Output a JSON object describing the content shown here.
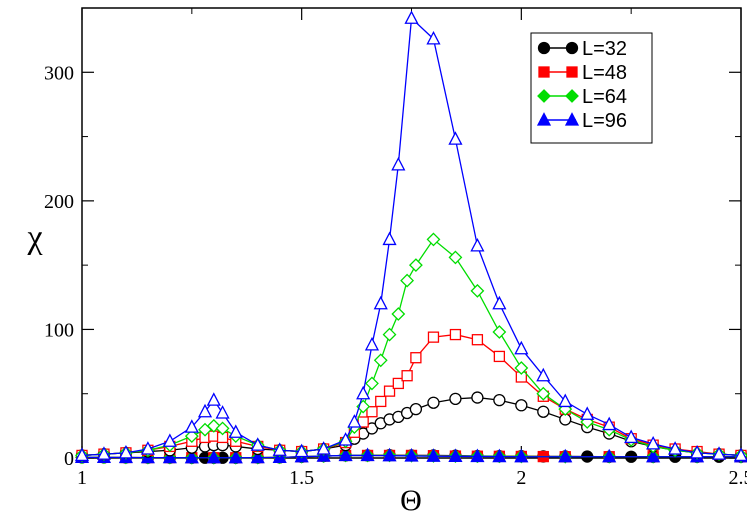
{
  "chart_data": {
    "type": "line",
    "xlabel": "Θ",
    "ylabel": "χ",
    "xlim": [
      1.0,
      2.5
    ],
    "ylim": [
      0,
      350
    ],
    "x_ticks": [
      "1",
      "1.5",
      "2",
      "2.5"
    ],
    "y_ticks": [
      "0",
      "100",
      "200",
      "300"
    ],
    "grid": false,
    "legend_position": "top-right",
    "series": [
      {
        "name": "L=32",
        "color": "#000000",
        "marker": "circle",
        "points": [
          [
            1.0,
            0.5
          ],
          [
            1.05,
            0.5
          ],
          [
            1.1,
            0.4
          ],
          [
            1.15,
            0.3
          ],
          [
            1.2,
            0.3
          ],
          [
            1.25,
            0.2
          ],
          [
            1.28,
            0.2
          ],
          [
            1.3,
            0.2
          ],
          [
            1.32,
            0.2
          ],
          [
            1.35,
            0.2
          ],
          [
            1.4,
            0.3
          ],
          [
            1.45,
            0.5
          ],
          [
            1.5,
            1.0
          ],
          [
            1.55,
            1.5
          ],
          [
            1.6,
            2.0
          ],
          [
            1.65,
            2.0
          ],
          [
            1.7,
            2.2
          ],
          [
            1.75,
            2.0
          ],
          [
            1.8,
            2.0
          ],
          [
            1.85,
            1.8
          ],
          [
            1.9,
            1.5
          ],
          [
            1.95,
            1.4
          ],
          [
            2.0,
            1.4
          ],
          [
            2.05,
            1.2
          ],
          [
            2.1,
            1.2
          ],
          [
            2.15,
            1.1
          ],
          [
            2.2,
            1.0
          ],
          [
            2.25,
            1.0
          ],
          [
            2.3,
            1.0
          ],
          [
            2.35,
            1.0
          ],
          [
            2.4,
            1.0
          ],
          [
            2.45,
            1.0
          ],
          [
            2.5,
            1.0
          ]
        ]
      },
      {
        "name": "L=48",
        "color": "#ff0000",
        "marker": "square",
        "points": [
          [
            1.0,
            0.5
          ],
          [
            1.05,
            0.5
          ],
          [
            1.1,
            0.4
          ],
          [
            1.15,
            0.3
          ],
          [
            1.2,
            0.3
          ],
          [
            1.25,
            0.2
          ],
          [
            1.3,
            0.2
          ],
          [
            1.35,
            0.2
          ],
          [
            1.4,
            0.3
          ],
          [
            1.45,
            0.5
          ],
          [
            1.5,
            1.0
          ],
          [
            1.55,
            1.5
          ],
          [
            1.6,
            2.0
          ],
          [
            1.65,
            2.0
          ],
          [
            1.7,
            2.0
          ],
          [
            1.75,
            2.0
          ],
          [
            1.8,
            1.8
          ],
          [
            1.85,
            1.5
          ],
          [
            1.9,
            1.4
          ],
          [
            1.95,
            1.3
          ],
          [
            2.0,
            1.2
          ],
          [
            2.05,
            1.1
          ],
          [
            2.1,
            1.0
          ],
          [
            2.2,
            1.0
          ],
          [
            2.3,
            1.0
          ],
          [
            2.4,
            1.0
          ],
          [
            2.5,
            1.0
          ]
        ]
      },
      {
        "name": "L=64",
        "color": "#00dd00",
        "marker": "diamond",
        "points": [
          [
            1.0,
            0.5
          ],
          [
            1.05,
            0.5
          ],
          [
            1.1,
            0.4
          ],
          [
            1.15,
            0.3
          ],
          [
            1.2,
            0.3
          ],
          [
            1.25,
            0.2
          ],
          [
            1.3,
            0.2
          ],
          [
            1.35,
            0.2
          ],
          [
            1.4,
            0.3
          ],
          [
            1.45,
            0.5
          ],
          [
            1.5,
            1.0
          ],
          [
            1.55,
            1.5
          ],
          [
            1.6,
            2.0
          ],
          [
            1.65,
            2.0
          ],
          [
            1.7,
            2.0
          ],
          [
            1.75,
            1.8
          ],
          [
            1.8,
            1.6
          ],
          [
            1.85,
            1.5
          ],
          [
            1.9,
            1.4
          ],
          [
            1.95,
            1.3
          ],
          [
            2.0,
            1.2
          ],
          [
            2.1,
            1.0
          ],
          [
            2.2,
            1.0
          ],
          [
            2.3,
            1.0
          ],
          [
            2.4,
            1.0
          ],
          [
            2.5,
            1.0
          ]
        ]
      },
      {
        "name": "L=96",
        "color": "#0000ff",
        "marker": "triangle",
        "points": [
          [
            1.0,
            0.5
          ],
          [
            1.05,
            0.5
          ],
          [
            1.1,
            0.4
          ],
          [
            1.15,
            0.3
          ],
          [
            1.2,
            0.3
          ],
          [
            1.25,
            0.2
          ],
          [
            1.3,
            0.2
          ],
          [
            1.35,
            0.2
          ],
          [
            1.4,
            0.3
          ],
          [
            1.45,
            0.5
          ],
          [
            1.5,
            1.0
          ],
          [
            1.55,
            1.5
          ],
          [
            1.6,
            2.0
          ],
          [
            1.65,
            2.0
          ],
          [
            1.7,
            1.8
          ],
          [
            1.75,
            1.6
          ],
          [
            1.8,
            1.4
          ],
          [
            1.85,
            1.3
          ],
          [
            1.9,
            1.2
          ],
          [
            1.95,
            1.1
          ],
          [
            2.0,
            1.0
          ],
          [
            2.1,
            1.0
          ],
          [
            2.2,
            1.0
          ],
          [
            2.3,
            1.0
          ],
          [
            2.4,
            1.0
          ],
          [
            2.5,
            1.0
          ]
        ]
      },
      {
        "name": "",
        "color": "#000000",
        "marker": "circle-open",
        "points": [
          [
            1.0,
            2
          ],
          [
            1.05,
            3
          ],
          [
            1.1,
            4
          ],
          [
            1.15,
            5
          ],
          [
            1.2,
            6
          ],
          [
            1.25,
            8
          ],
          [
            1.28,
            9
          ],
          [
            1.3,
            10
          ],
          [
            1.32,
            10
          ],
          [
            1.35,
            9
          ],
          [
            1.4,
            7
          ],
          [
            1.45,
            6
          ],
          [
            1.5,
            5
          ],
          [
            1.55,
            7
          ],
          [
            1.6,
            10
          ],
          [
            1.62,
            15
          ],
          [
            1.64,
            19
          ],
          [
            1.66,
            23
          ],
          [
            1.68,
            27
          ],
          [
            1.7,
            30
          ],
          [
            1.72,
            32
          ],
          [
            1.74,
            35
          ],
          [
            1.76,
            38
          ],
          [
            1.8,
            43
          ],
          [
            1.85,
            46
          ],
          [
            1.9,
            47
          ],
          [
            1.95,
            45
          ],
          [
            2.0,
            41
          ],
          [
            2.05,
            36
          ],
          [
            2.1,
            30
          ],
          [
            2.15,
            24
          ],
          [
            2.2,
            19
          ],
          [
            2.25,
            13
          ],
          [
            2.3,
            9
          ],
          [
            2.35,
            6
          ],
          [
            2.4,
            4
          ],
          [
            2.45,
            3
          ],
          [
            2.5,
            2
          ]
        ]
      },
      {
        "name": "",
        "color": "#ff0000",
        "marker": "square-open",
        "points": [
          [
            1.0,
            2
          ],
          [
            1.05,
            3
          ],
          [
            1.1,
            4
          ],
          [
            1.15,
            6
          ],
          [
            1.2,
            9
          ],
          [
            1.25,
            13
          ],
          [
            1.28,
            16
          ],
          [
            1.3,
            17
          ],
          [
            1.32,
            16
          ],
          [
            1.35,
            13
          ],
          [
            1.4,
            9
          ],
          [
            1.45,
            6
          ],
          [
            1.5,
            5
          ],
          [
            1.55,
            7
          ],
          [
            1.6,
            12
          ],
          [
            1.62,
            20
          ],
          [
            1.64,
            28
          ],
          [
            1.66,
            36
          ],
          [
            1.68,
            44
          ],
          [
            1.7,
            52
          ],
          [
            1.72,
            58
          ],
          [
            1.74,
            64
          ],
          [
            1.76,
            78
          ],
          [
            1.8,
            94
          ],
          [
            1.85,
            96
          ],
          [
            1.9,
            92
          ],
          [
            1.95,
            79
          ],
          [
            2.0,
            63
          ],
          [
            2.05,
            48
          ],
          [
            2.1,
            38
          ],
          [
            2.15,
            30
          ],
          [
            2.2,
            24
          ],
          [
            2.25,
            15
          ],
          [
            2.3,
            10
          ],
          [
            2.35,
            7
          ],
          [
            2.4,
            5
          ],
          [
            2.45,
            3
          ],
          [
            2.5,
            2
          ]
        ]
      },
      {
        "name": "",
        "color": "#00dd00",
        "marker": "diamond-open",
        "points": [
          [
            1.0,
            2
          ],
          [
            1.05,
            3
          ],
          [
            1.1,
            4
          ],
          [
            1.15,
            6
          ],
          [
            1.2,
            10
          ],
          [
            1.25,
            17
          ],
          [
            1.28,
            22
          ],
          [
            1.3,
            25
          ],
          [
            1.32,
            23
          ],
          [
            1.35,
            17
          ],
          [
            1.4,
            10
          ],
          [
            1.45,
            6
          ],
          [
            1.5,
            5
          ],
          [
            1.55,
            7
          ],
          [
            1.6,
            13
          ],
          [
            1.62,
            24
          ],
          [
            1.64,
            40
          ],
          [
            1.66,
            58
          ],
          [
            1.68,
            76
          ],
          [
            1.7,
            96
          ],
          [
            1.72,
            112
          ],
          [
            1.74,
            138
          ],
          [
            1.76,
            150
          ],
          [
            1.8,
            170
          ],
          [
            1.85,
            156
          ],
          [
            1.9,
            130
          ],
          [
            1.95,
            98
          ],
          [
            2.0,
            70
          ],
          [
            2.05,
            50
          ],
          [
            2.1,
            38
          ],
          [
            2.15,
            28
          ],
          [
            2.2,
            22
          ],
          [
            2.25,
            14
          ],
          [
            2.3,
            9
          ],
          [
            2.35,
            6
          ],
          [
            2.4,
            4
          ],
          [
            2.45,
            3
          ],
          [
            2.5,
            2
          ]
        ]
      },
      {
        "name": "",
        "color": "#0000ff",
        "marker": "triangle-open",
        "points": [
          [
            1.0,
            2
          ],
          [
            1.05,
            3
          ],
          [
            1.1,
            4
          ],
          [
            1.15,
            7
          ],
          [
            1.2,
            13
          ],
          [
            1.25,
            24
          ],
          [
            1.28,
            36
          ],
          [
            1.3,
            45
          ],
          [
            1.32,
            35
          ],
          [
            1.35,
            20
          ],
          [
            1.4,
            10
          ],
          [
            1.45,
            6
          ],
          [
            1.5,
            5
          ],
          [
            1.55,
            7
          ],
          [
            1.6,
            14
          ],
          [
            1.62,
            28
          ],
          [
            1.64,
            50
          ],
          [
            1.66,
            88
          ],
          [
            1.68,
            120
          ],
          [
            1.7,
            170
          ],
          [
            1.72,
            228
          ],
          [
            1.75,
            342
          ],
          [
            1.8,
            326
          ],
          [
            1.85,
            248
          ],
          [
            1.9,
            165
          ],
          [
            1.95,
            120
          ],
          [
            2.0,
            85
          ],
          [
            2.05,
            64
          ],
          [
            2.1,
            44
          ],
          [
            2.15,
            34
          ],
          [
            2.2,
            26
          ],
          [
            2.25,
            16
          ],
          [
            2.3,
            11
          ],
          [
            2.35,
            7
          ],
          [
            2.4,
            4
          ],
          [
            2.45,
            3
          ],
          [
            2.5,
            2
          ]
        ]
      }
    ]
  }
}
